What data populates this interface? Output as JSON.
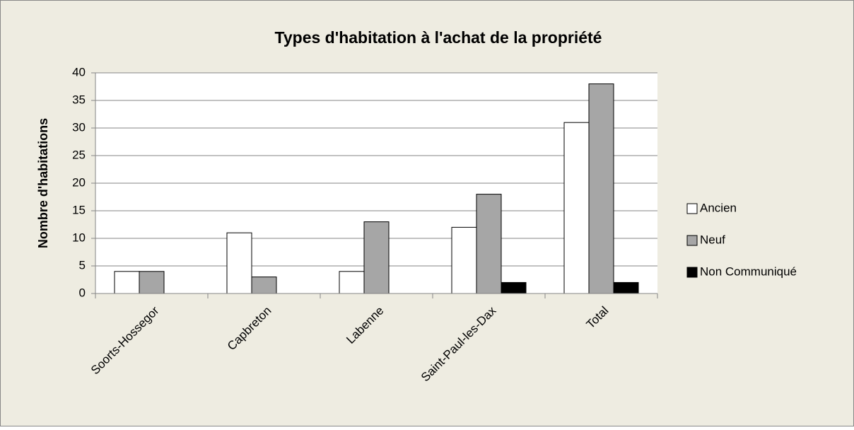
{
  "chart_data": {
    "type": "bar",
    "title": "Types d'habitation à l'achat de la propriété",
    "y_label": "Nombre d'habitations",
    "categories": [
      "Soorts-Hossegor",
      "Capbreton",
      "Labenne",
      "Saint-Paul-les-Dax",
      "Total"
    ],
    "series": [
      {
        "name": "Ancien",
        "color": "#ffffff",
        "values": [
          4,
          11,
          4,
          12,
          31
        ]
      },
      {
        "name": "Neuf",
        "color": "#a6a6a6",
        "values": [
          4,
          3,
          13,
          18,
          38
        ]
      },
      {
        "name": "Non Communiqué",
        "color": "#000000",
        "values": [
          0,
          0,
          0,
          2,
          2
        ]
      }
    ],
    "ylim": [
      0,
      40
    ],
    "yticks": [
      0,
      5,
      10,
      15,
      20,
      25,
      30,
      35,
      40
    ],
    "grid": true,
    "legend": "right"
  }
}
